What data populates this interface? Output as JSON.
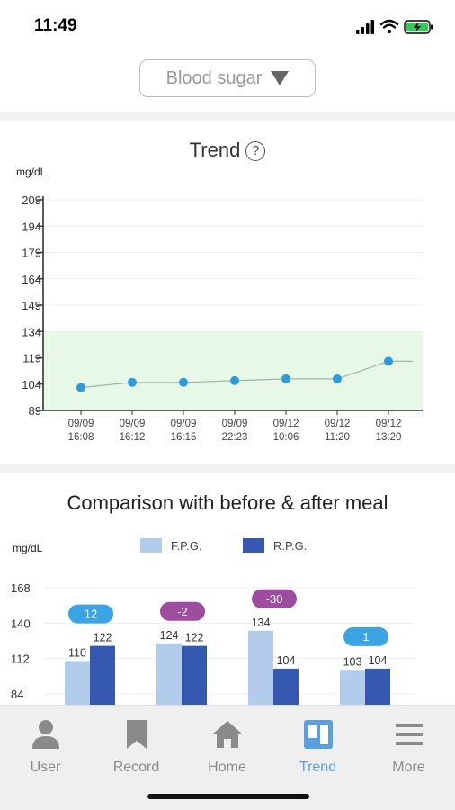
{
  "status": {
    "time": "11:49"
  },
  "selector": {
    "label": "Blood sugar"
  },
  "trend": {
    "title": "Trend",
    "help": "?",
    "unit": "mg/dL"
  },
  "comparison": {
    "title": "Comparison with before & after meal",
    "unit": "mg/dL",
    "legend_fpg": "F.P.G.",
    "legend_rpg": "R.P.G."
  },
  "tabs": [
    {
      "label": "User",
      "icon": "user-icon"
    },
    {
      "label": "Record",
      "icon": "bookmark-icon"
    },
    {
      "label": "Home",
      "icon": "home-icon"
    },
    {
      "label": "Trend",
      "icon": "trend-icon",
      "active": true
    },
    {
      "label": "More",
      "icon": "menu-icon"
    }
  ],
  "colors": {
    "accent": "#5aa0e0",
    "point": "#2d9be0",
    "normal_band": "#e8f8e6",
    "fpg": "#b3ccec",
    "rpg": "#3559b1",
    "diff_blue": "#3aa4e4",
    "diff_purple": "#9d4ca0"
  },
  "chart_data": [
    {
      "type": "line",
      "title": "Trend",
      "ylabel": "mg/dL",
      "yticks": [
        89,
        104,
        119,
        134,
        149,
        164,
        179,
        194,
        209
      ],
      "ylim": [
        89,
        209
      ],
      "normal_range": [
        89,
        134
      ],
      "grid": true,
      "x": [
        "09/09 16:08",
        "09/09 16:12",
        "09/09 16:15",
        "09/09 22:23",
        "09/12 10:06",
        "09/12 11:20",
        "09/12 13:20"
      ],
      "x_top": [
        "09/09",
        "09/09",
        "09/09",
        "09/09",
        "09/12",
        "09/12",
        "09/12"
      ],
      "x_bottom": [
        "16:08",
        "16:12",
        "16:15",
        "22:23",
        "10:06",
        "11:20",
        "13:20"
      ],
      "values": [
        102,
        105,
        105,
        106,
        107,
        107,
        117
      ]
    },
    {
      "type": "bar",
      "title": "Comparison with before & after meal",
      "ylabel": "mg/dL",
      "yticks": [
        84,
        112,
        140,
        168
      ],
      "series": [
        {
          "name": "F.P.G.",
          "values": [
            110,
            124,
            134,
            103
          ]
        },
        {
          "name": "R.P.G.",
          "values": [
            122,
            122,
            104,
            104
          ]
        }
      ],
      "differences": [
        "12",
        "-2",
        "-30",
        "1"
      ],
      "difference_colors": [
        "blue",
        "purple",
        "purple",
        "blue"
      ]
    }
  ]
}
